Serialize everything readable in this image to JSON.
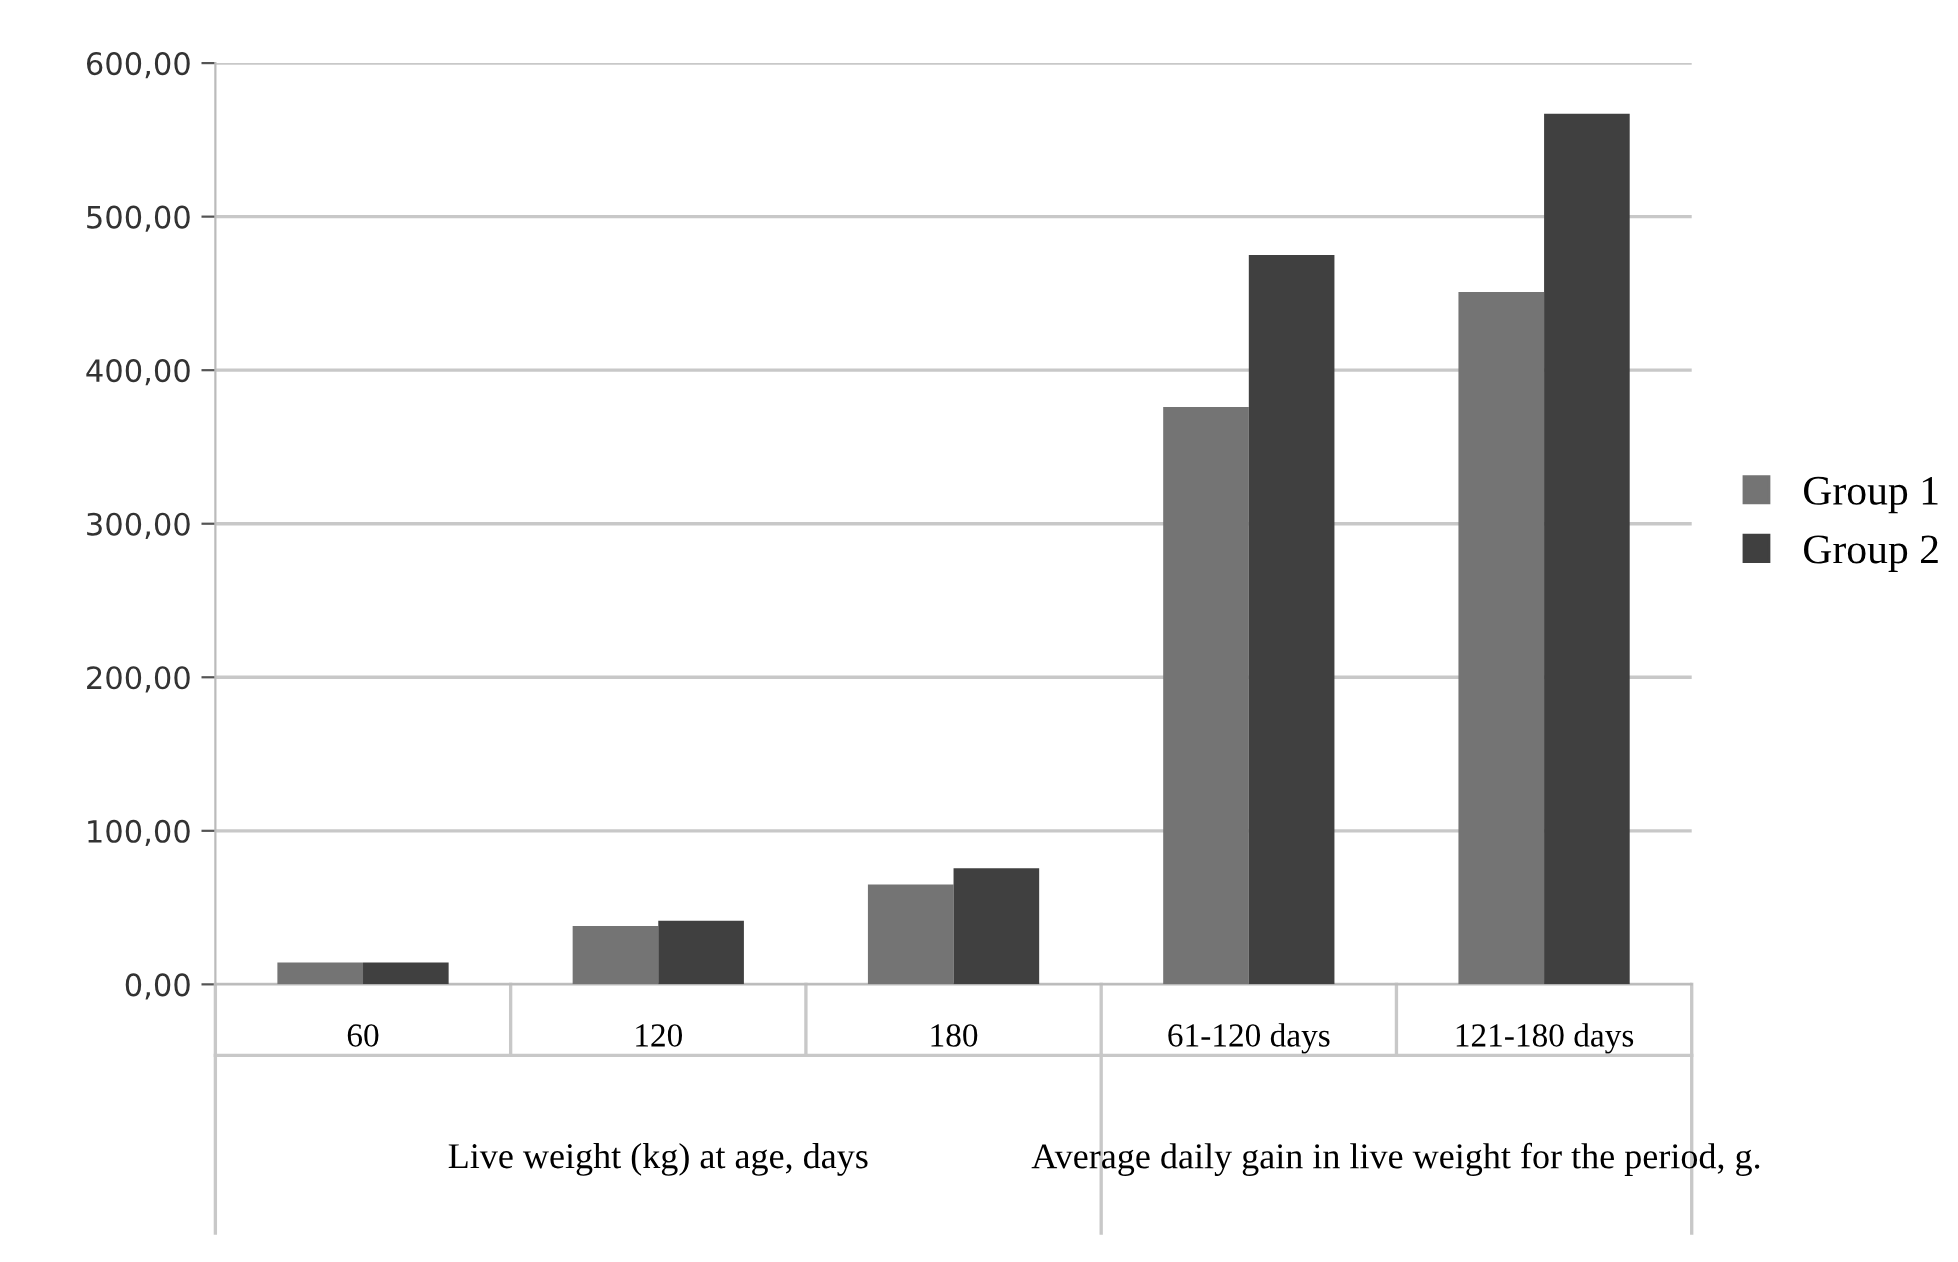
{
  "chart_data": {
    "type": "bar",
    "categories": [
      "60",
      "120",
      "180",
      "61-120 days",
      "121-180 days"
    ],
    "series": [
      {
        "name": "Group 1",
        "color": "#747474",
        "values": [
          14.3,
          38,
          65,
          376,
          451
        ]
      },
      {
        "name": "Group 2",
        "color": "#404040",
        "values": [
          14.3,
          41.5,
          75.7,
          475,
          567
        ]
      }
    ],
    "ylim": [
      0,
      600
    ],
    "yticks": [
      {
        "value": 0,
        "label": "0,00"
      },
      {
        "value": 100,
        "label": "100,00"
      },
      {
        "value": 200,
        "label": "200,00"
      },
      {
        "value": 300,
        "label": "300,00"
      },
      {
        "value": 400,
        "label": "400,00"
      },
      {
        "value": 500,
        "label": "500,00"
      },
      {
        "value": 600,
        "label": "600,00"
      }
    ],
    "annotations": [
      "Live weight (kg) at age, days",
      "Average daily gain in live weight for the period, g."
    ],
    "grid": "y",
    "legend": "right"
  }
}
